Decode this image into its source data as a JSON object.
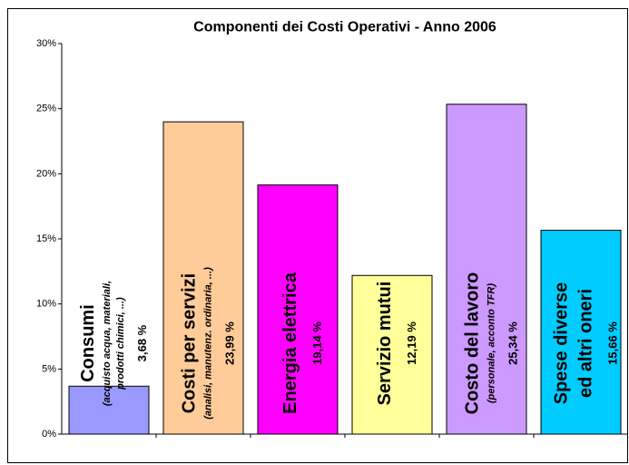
{
  "chart_data": {
    "type": "bar",
    "title": "Componenti dei Costi Operativi - Anno 2006",
    "categories": [
      [
        "Consumi"
      ],
      [
        "Costi per servizi"
      ],
      [
        "Energia elettrica"
      ],
      [
        "Servizio mutui"
      ],
      [
        "Costo del lavoro"
      ],
      [
        "Spese diverse",
        "ed altri oneri"
      ]
    ],
    "notes": [
      [
        "(acquisto acqua, materiali,",
        "prodotti chimici, ...)"
      ],
      [
        "(analisi, manutenz. ordinaria, ...)"
      ],
      [],
      [],
      [
        "(personale, acconto TFR)"
      ],
      []
    ],
    "values": [
      3.68,
      23.99,
      19.14,
      12.19,
      25.34,
      15.66
    ],
    "value_labels": [
      "3,68 %",
      "23,99 %",
      "19,14 %",
      "12,19 %",
      "25,34 %",
      "15,66 %"
    ],
    "colors": [
      "#9999ff",
      "#ffcc99",
      "#ff00ff",
      "#ffff99",
      "#cc99ff",
      "#00ccff"
    ],
    "ylim": [
      0,
      30
    ],
    "yticks": [
      {
        "value": 0,
        "label": "0%"
      },
      {
        "value": 5,
        "label": "5%"
      },
      {
        "value": 10,
        "label": "10%"
      },
      {
        "value": 15,
        "label": "15%"
      },
      {
        "value": 20,
        "label": "20%"
      },
      {
        "value": 25,
        "label": "25%"
      },
      {
        "value": 30,
        "label": "30%"
      }
    ],
    "grid": false
  }
}
